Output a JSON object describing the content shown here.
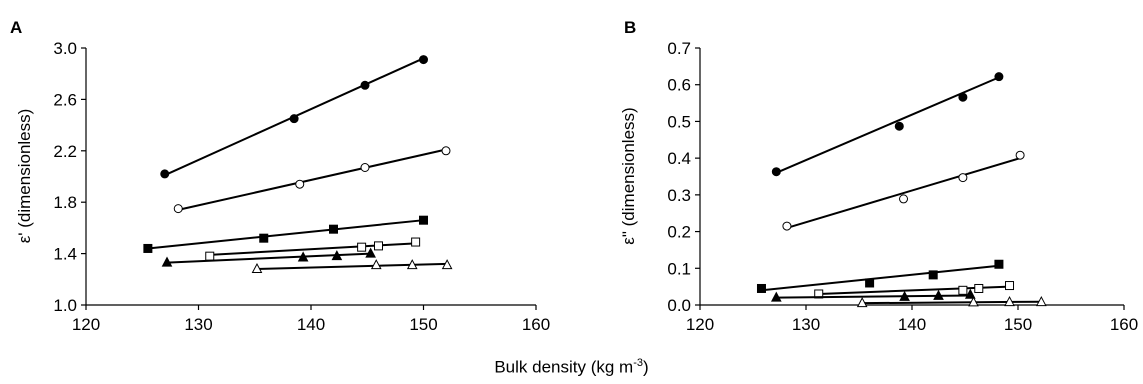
{
  "xlabel": {
    "main": "Bulk density (kg m",
    "sup": "-3",
    "close": ")"
  },
  "chart_data": [
    {
      "type": "scatter",
      "panel": "A",
      "ylabel": "ε' (dimensionless)",
      "xlim": [
        120,
        160
      ],
      "ylim": [
        1.0,
        3.0
      ],
      "xticks": [
        120,
        130,
        140,
        150,
        160
      ],
      "yticks": [
        1.0,
        1.4,
        1.8,
        2.2,
        2.6,
        3.0
      ],
      "ytick_labels": [
        "1.0",
        "1.4",
        "1.8",
        "2.2",
        "2.6",
        "3.0"
      ],
      "series": [
        {
          "marker": "filled-circle",
          "x": [
            127,
            138.5,
            144.8,
            150
          ],
          "y": [
            2.02,
            2.45,
            2.71,
            2.91
          ],
          "fit": [
            [
              127,
              2.01
            ],
            [
              150,
              2.92
            ]
          ]
        },
        {
          "marker": "open-circle",
          "x": [
            128.2,
            139,
            144.8,
            152
          ],
          "y": [
            1.75,
            1.94,
            2.07,
            2.2
          ],
          "fit": [
            [
              128.2,
              1.74
            ],
            [
              152,
              2.21
            ]
          ]
        },
        {
          "marker": "filled-square",
          "x": [
            125.5,
            135.8,
            142,
            150
          ],
          "y": [
            1.44,
            1.52,
            1.59,
            1.66
          ],
          "fit": [
            [
              125.5,
              1.44
            ],
            [
              150,
              1.66
            ]
          ]
        },
        {
          "marker": "open-square",
          "x": [
            131,
            144.5,
            146,
            149.3
          ],
          "y": [
            1.38,
            1.45,
            1.46,
            1.49
          ],
          "fit": [
            [
              131,
              1.39
            ],
            [
              149.3,
              1.48
            ]
          ]
        },
        {
          "marker": "filled-triangle",
          "x": [
            127.2,
            139.3,
            142.3,
            145.3
          ],
          "y": [
            1.33,
            1.37,
            1.38,
            1.4
          ],
          "fit": [
            [
              127.2,
              1.33
            ],
            [
              145.3,
              1.4
            ]
          ]
        },
        {
          "marker": "open-triangle",
          "x": [
            135.2,
            145.8,
            149,
            152.1
          ],
          "y": [
            1.28,
            1.31,
            1.31,
            1.31
          ],
          "fit": [
            [
              135.2,
              1.28
            ],
            [
              152.1,
              1.32
            ]
          ]
        }
      ]
    },
    {
      "type": "scatter",
      "panel": "B",
      "ylabel": "ε\" (dimensionless)",
      "xlim": [
        120,
        160
      ],
      "ylim": [
        0.0,
        0.7
      ],
      "xticks": [
        120,
        130,
        140,
        150,
        160
      ],
      "yticks": [
        0.0,
        0.1,
        0.2,
        0.3,
        0.4,
        0.5,
        0.6,
        0.7
      ],
      "ytick_labels": [
        "0.0",
        "0.1",
        "0.2",
        "0.3",
        "0.4",
        "0.5",
        "0.6",
        "0.7"
      ],
      "series": [
        {
          "marker": "filled-circle",
          "x": [
            127.2,
            138.8,
            144.8,
            148.2
          ],
          "y": [
            0.363,
            0.487,
            0.566,
            0.622
          ],
          "fit": [
            [
              127.2,
              0.36
            ],
            [
              148.2,
              0.62
            ]
          ]
        },
        {
          "marker": "open-circle",
          "x": [
            128.2,
            139.2,
            144.8,
            150.2
          ],
          "y": [
            0.215,
            0.289,
            0.347,
            0.408
          ],
          "fit": [
            [
              128.2,
              0.21
            ],
            [
              150.2,
              0.4
            ]
          ]
        },
        {
          "marker": "filled-square",
          "x": [
            125.8,
            136,
            142,
            148.2
          ],
          "y": [
            0.045,
            0.06,
            0.082,
            0.111
          ],
          "fit": [
            [
              125.8,
              0.04
            ],
            [
              148.2,
              0.107
            ]
          ]
        },
        {
          "marker": "open-square",
          "x": [
            131.2,
            144.8,
            146.3,
            149.2
          ],
          "y": [
            0.03,
            0.04,
            0.045,
            0.053
          ],
          "fit": [
            [
              131.2,
              0.03
            ],
            [
              149.2,
              0.05
            ]
          ]
        },
        {
          "marker": "filled-triangle",
          "x": [
            127.2,
            139.3,
            142.5,
            145.5
          ],
          "y": [
            0.02,
            0.022,
            0.025,
            0.028
          ],
          "fit": [
            [
              127.2,
              0.02
            ],
            [
              145.5,
              0.026
            ]
          ]
        },
        {
          "marker": "open-triangle",
          "x": [
            135.3,
            145.8,
            149.2,
            152.2
          ],
          "y": [
            0.005,
            0.007,
            0.008,
            0.008
          ],
          "fit": [
            [
              135.3,
              0.005
            ],
            [
              152.2,
              0.009
            ]
          ]
        }
      ]
    }
  ]
}
